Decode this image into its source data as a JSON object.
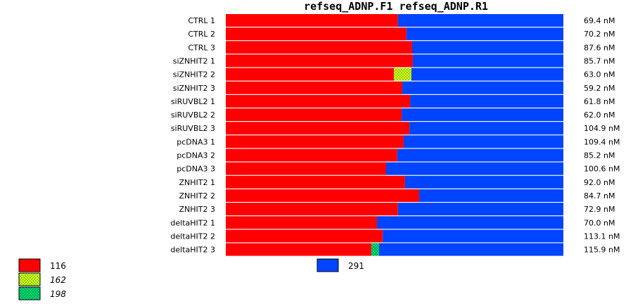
{
  "chart_data": {
    "type": "bar",
    "stacked": true,
    "orientation": "horizontal",
    "title": "refseq_ADNP.F1  refseq_ADNP.R1",
    "rows": [
      {
        "label": "CTRL 1",
        "concentration": "69.4 nM",
        "segments": [
          {
            "key": "116",
            "value": 51.0
          },
          {
            "key": "291",
            "value": 49.0
          }
        ]
      },
      {
        "label": "CTRL 2",
        "concentration": "70.2 nM",
        "segments": [
          {
            "key": "116",
            "value": 53.5
          },
          {
            "key": "291",
            "value": 46.5
          }
        ]
      },
      {
        "label": "CTRL 3",
        "concentration": "87.6 nM",
        "segments": [
          {
            "key": "116",
            "value": 55.2
          },
          {
            "key": "291",
            "value": 44.8
          }
        ]
      },
      {
        "label": "siZNHIT2 1",
        "concentration": "85.7 nM",
        "segments": [
          {
            "key": "116",
            "value": 55.4
          },
          {
            "key": "291",
            "value": 44.6
          }
        ]
      },
      {
        "label": "siZNHIT2 2",
        "concentration": "63.0 nM",
        "segments": [
          {
            "key": "116",
            "value": 49.8
          },
          {
            "key": "162",
            "value": 5.2
          },
          {
            "key": "291",
            "value": 45.0
          }
        ]
      },
      {
        "label": "siZNHIT2 3",
        "concentration": "59.2 nM",
        "segments": [
          {
            "key": "116",
            "value": 52.3
          },
          {
            "key": "291",
            "value": 47.7
          }
        ]
      },
      {
        "label": "siRUVBL2 1",
        "concentration": "61.8 nM",
        "segments": [
          {
            "key": "116",
            "value": 54.6
          },
          {
            "key": "291",
            "value": 45.4
          }
        ]
      },
      {
        "label": "siRUVBL2 2",
        "concentration": "62.0 nM",
        "segments": [
          {
            "key": "116",
            "value": 52.1
          },
          {
            "key": "291",
            "value": 47.9
          }
        ]
      },
      {
        "label": "siRUVBL2 3",
        "concentration": "104.9 nM",
        "segments": [
          {
            "key": "116",
            "value": 54.4
          },
          {
            "key": "291",
            "value": 45.6
          }
        ]
      },
      {
        "label": "pcDNA3 1",
        "concentration": "109.4 nM",
        "segments": [
          {
            "key": "116",
            "value": 52.7
          },
          {
            "key": "291",
            "value": 47.3
          }
        ]
      },
      {
        "label": "pcDNA3 2",
        "concentration": "85.2 nM",
        "segments": [
          {
            "key": "116",
            "value": 50.8
          },
          {
            "key": "291",
            "value": 49.2
          }
        ]
      },
      {
        "label": "pcDNA3 3",
        "concentration": "100.6 nM",
        "segments": [
          {
            "key": "116",
            "value": 47.5
          },
          {
            "key": "291",
            "value": 52.5
          }
        ]
      },
      {
        "label": "ZNHIT2 1",
        "concentration": "92.0 nM",
        "segments": [
          {
            "key": "116",
            "value": 53.1
          },
          {
            "key": "291",
            "value": 46.9
          }
        ]
      },
      {
        "label": "ZNHIT2 2",
        "concentration": "84.7 nM",
        "segments": [
          {
            "key": "116",
            "value": 57.3
          },
          {
            "key": "291",
            "value": 42.7
          }
        ]
      },
      {
        "label": "ZNHIT2 3",
        "concentration": "72.9 nM",
        "segments": [
          {
            "key": "116",
            "value": 51.0
          },
          {
            "key": "291",
            "value": 49.0
          }
        ]
      },
      {
        "label": "deltaHIT2 1",
        "concentration": "70.0 nM",
        "segments": [
          {
            "key": "116",
            "value": 44.8
          },
          {
            "key": "291",
            "value": 55.2
          }
        ]
      },
      {
        "label": "deltaHIT2 2",
        "concentration": "113.1 nM",
        "segments": [
          {
            "key": "116",
            "value": 46.5
          },
          {
            "key": "291",
            "value": 53.5
          }
        ]
      },
      {
        "label": "deltaHIT2 3",
        "concentration": "115.9 nM",
        "segments": [
          {
            "key": "116",
            "value": 43.1
          },
          {
            "key": "198",
            "value": 2.3
          },
          {
            "key": "291",
            "value": 54.6
          }
        ]
      }
    ],
    "legend": [
      {
        "key": "116",
        "label": "116",
        "color": "#ff0000",
        "pattern": "solid",
        "italic": false
      },
      {
        "key": "162",
        "label": "162",
        "color": "#ccff00",
        "pattern": "checker",
        "italic": true
      },
      {
        "key": "198",
        "label": "198",
        "color": "#00e676",
        "pattern": "checker",
        "italic": true
      },
      {
        "key": "291",
        "label": "291",
        "color": "#0044ff",
        "pattern": "solid",
        "italic": false
      }
    ],
    "legend_placement": "bottom",
    "grid": false
  }
}
